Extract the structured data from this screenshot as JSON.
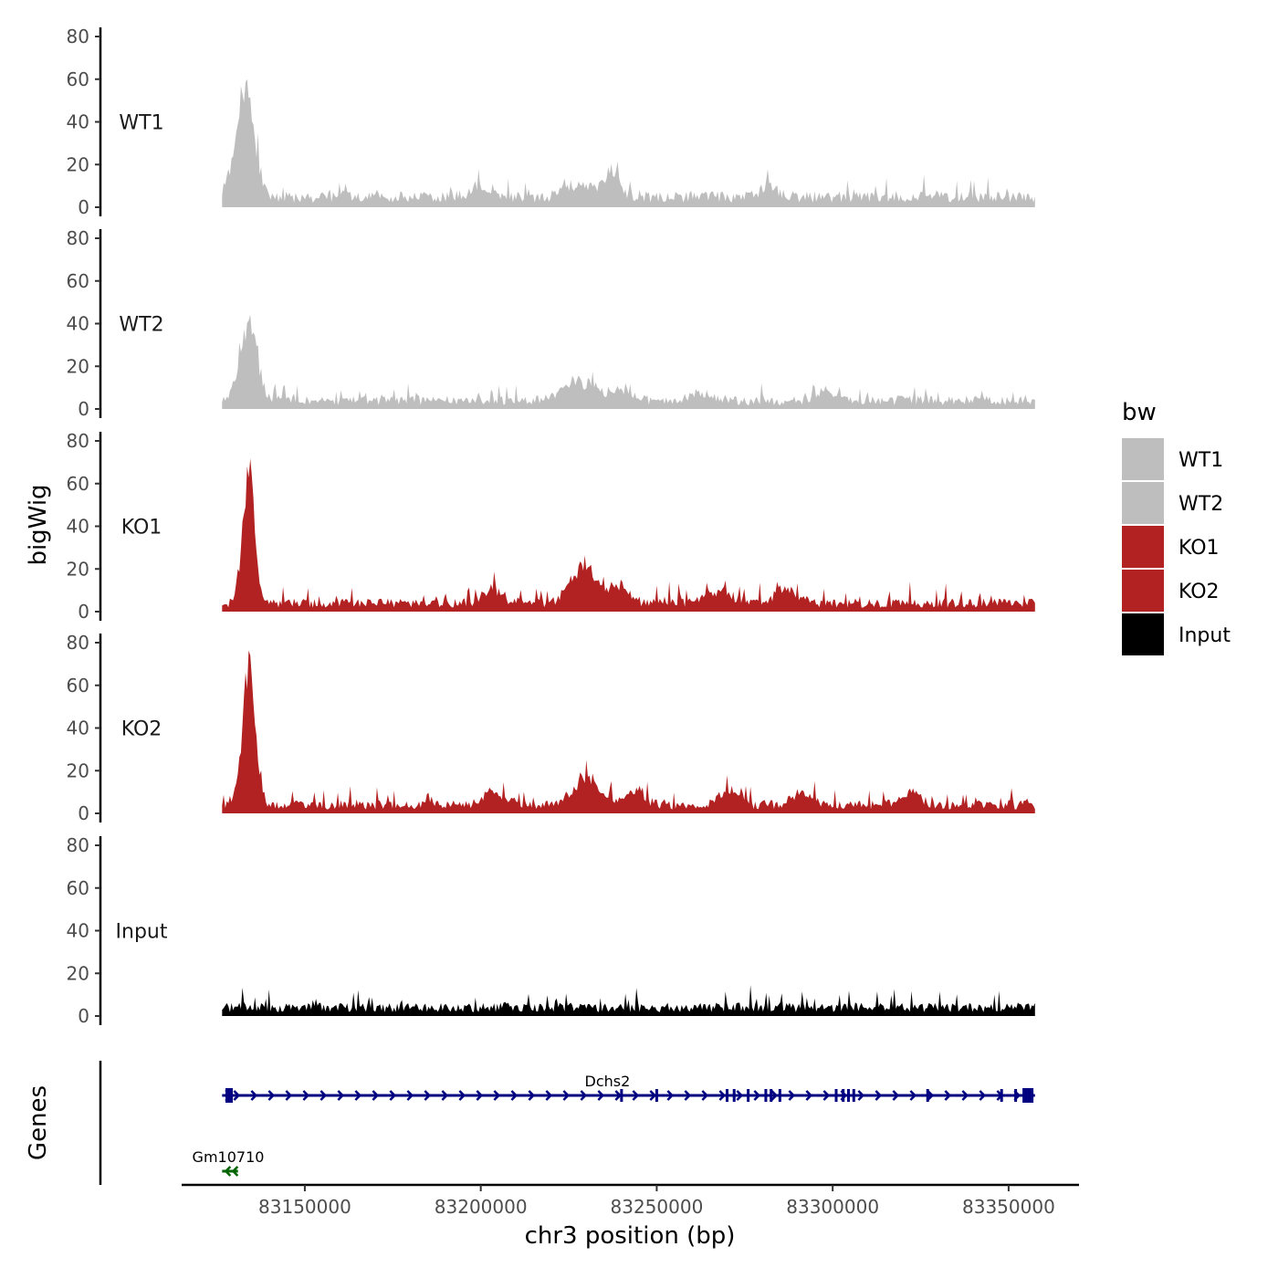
{
  "chart_data": {
    "type": "area",
    "title": "",
    "ylabel": "bigWig",
    "xlabel": "chr3 position (bp)",
    "genes_label": "Genes",
    "xlim": [
      83115000,
      83370000
    ],
    "data_range": [
      83126500,
      83357500
    ],
    "x_ticks": [
      {
        "value": 83150000,
        "label": "83150000"
      },
      {
        "value": 83200000,
        "label": "83200000"
      },
      {
        "value": 83250000,
        "label": "83250000"
      },
      {
        "value": 83300000,
        "label": "83300000"
      },
      {
        "value": 83350000,
        "label": "83350000"
      }
    ],
    "ylim": [
      0,
      80
    ],
    "y_ticks": [
      {
        "value": 0,
        "label": "0"
      },
      {
        "value": 20,
        "label": "20"
      },
      {
        "value": 40,
        "label": "40"
      },
      {
        "value": 60,
        "label": "60"
      },
      {
        "value": 80,
        "label": "80"
      }
    ],
    "legend": {
      "title": "bw",
      "position": "right",
      "entries": [
        {
          "name": "WT1",
          "color": "#bebebe"
        },
        {
          "name": "WT2",
          "color": "#bebebe"
        },
        {
          "name": "KO1",
          "color": "#b22222"
        },
        {
          "name": "KO2",
          "color": "#b22222"
        },
        {
          "name": "Input",
          "color": "#000000"
        }
      ]
    },
    "series": [
      {
        "name": "WT1",
        "color": "#bebebe",
        "baseline": 6,
        "noise": 5,
        "seed": 11,
        "peaks": [
          [
            83133000,
            60,
            2600
          ],
          [
            83237000,
            14,
            2200
          ],
          [
            83228000,
            8,
            3500
          ],
          [
            83200000,
            4,
            4000
          ],
          [
            83282000,
            6,
            2500
          ]
        ]
      },
      {
        "name": "WT2",
        "color": "#bebebe",
        "baseline": 5,
        "noise": 4,
        "seed": 23,
        "peaks": [
          [
            83134000,
            40,
            2500
          ],
          [
            83228000,
            10,
            4500
          ],
          [
            83240000,
            6,
            3000
          ],
          [
            83263000,
            4,
            3000
          ],
          [
            83298000,
            6,
            2500
          ]
        ]
      },
      {
        "name": "KO1",
        "color": "#b22222",
        "baseline": 5,
        "noise": 5,
        "seed": 37,
        "peaks": [
          [
            83134000,
            65,
            1700
          ],
          [
            83229000,
            20,
            3500
          ],
          [
            83239000,
            10,
            3000
          ],
          [
            83203000,
            8,
            2500
          ],
          [
            83287000,
            8,
            3000
          ],
          [
            83268000,
            6,
            3500
          ]
        ]
      },
      {
        "name": "KO2",
        "color": "#b22222",
        "baseline": 5,
        "noise": 5,
        "seed": 53,
        "peaks": [
          [
            83134000,
            72,
            1800
          ],
          [
            83230000,
            16,
            3500
          ],
          [
            83243000,
            8,
            3000
          ],
          [
            83204000,
            7,
            3000
          ],
          [
            83270000,
            8,
            2500
          ],
          [
            83291000,
            6,
            3000
          ],
          [
            83322000,
            8,
            2500
          ]
        ]
      },
      {
        "name": "Input",
        "color": "#000000",
        "baseline": 5,
        "noise": 6,
        "seed": 71,
        "peaks": []
      }
    ],
    "genes": [
      {
        "name": "Dchs2",
        "strand": "+",
        "start": 83126500,
        "end": 83357500,
        "color": "#000080",
        "row": 1,
        "exons": [
          83128500,
          83240000,
          83250000,
          83270000,
          83272000,
          83276000,
          83281000,
          83282500,
          83285000,
          83301000,
          83303000,
          83304500,
          83306000,
          83327000,
          83348000,
          83352000,
          83355500
        ]
      },
      {
        "name": "Gm10710",
        "strand": "-",
        "start": 83126500,
        "end": 83131000,
        "color": "#006400",
        "row": 2,
        "exons": []
      }
    ]
  }
}
